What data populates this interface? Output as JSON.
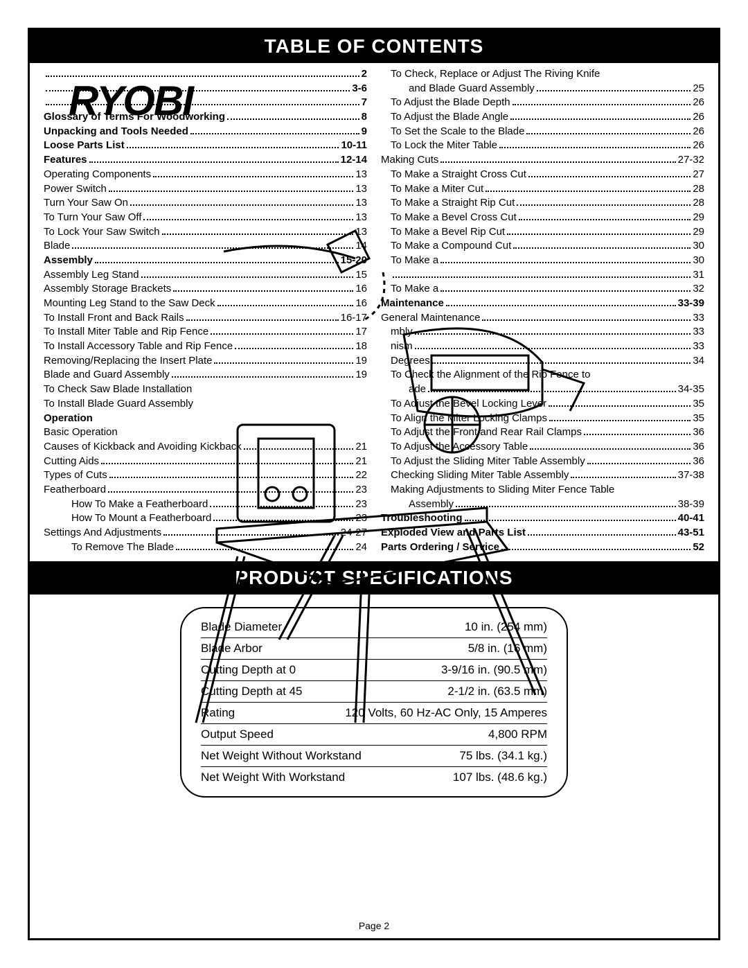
{
  "brand": "RYOBI",
  "headers": {
    "toc": "TABLE OF CONTENTS",
    "specs": "PRODUCT SPECIFICATIONS"
  },
  "page_label": "Page 2",
  "toc_left": [
    {
      "label": "",
      "page": "2",
      "bold": true,
      "indent": 0
    },
    {
      "label": "",
      "page": "3-6",
      "bold": true,
      "indent": 0
    },
    {
      "label": "",
      "page": "7",
      "bold": true,
      "indent": 0
    },
    {
      "label": "Glossary of Terms For Woodworking",
      "page": "8",
      "bold": true,
      "indent": 0
    },
    {
      "label": "Unpacking and Tools Needed",
      "page": "9",
      "bold": true,
      "indent": 0
    },
    {
      "label": "Loose Parts List",
      "page": "10-11",
      "bold": true,
      "indent": 0
    },
    {
      "label": "Features",
      "page": "12-14",
      "bold": true,
      "indent": 0
    },
    {
      "label": "Operating Components",
      "page": "13",
      "bold": false,
      "indent": 0
    },
    {
      "label": "Power Switch",
      "page": "13",
      "bold": false,
      "indent": 0
    },
    {
      "label": "Turn Your Saw On",
      "page": "13",
      "bold": false,
      "indent": 0
    },
    {
      "label": "To Turn Your Saw Off",
      "page": "13",
      "bold": false,
      "indent": 0
    },
    {
      "label": "To Lock Your Saw Switch",
      "page": "13",
      "bold": false,
      "indent": 0
    },
    {
      "label": "Blade",
      "page": "14",
      "bold": false,
      "indent": 0
    },
    {
      "label": "Assembly",
      "page": "15-20",
      "bold": true,
      "indent": 0
    },
    {
      "label": "Assembly Leg Stand",
      "page": "15",
      "bold": false,
      "indent": 0
    },
    {
      "label": "Assembly Storage Brackets",
      "page": "16",
      "bold": false,
      "indent": 0
    },
    {
      "label": "Mounting Leg Stand to the Saw Deck",
      "page": "16",
      "bold": false,
      "indent": 0
    },
    {
      "label": "To Install Front and Back Rails",
      "page": "16-17",
      "bold": false,
      "indent": 0
    },
    {
      "label": "To Install Miter Table and Rip Fence",
      "page": "17",
      "bold": false,
      "indent": 0
    },
    {
      "label": "To Install Accessory Table and Rip Fence",
      "page": "18",
      "bold": false,
      "indent": 0
    },
    {
      "label": "Removing/Replacing the Insert Plate",
      "page": "19",
      "bold": false,
      "indent": 0
    },
    {
      "label": "Blade and Guard Assembly",
      "page": "19",
      "bold": false,
      "indent": 0
    },
    {
      "label": "To Check Saw Blade Installation",
      "page": "",
      "bold": false,
      "indent": 0
    },
    {
      "label": "To Install Blade Guard Assembly",
      "page": "",
      "bold": false,
      "indent": 0
    },
    {
      "label": "Operation",
      "page": "",
      "bold": true,
      "indent": 0
    },
    {
      "label": "Basic Operation",
      "page": "",
      "bold": false,
      "indent": 0
    },
    {
      "label": "Causes of Kickback and Avoiding Kickback",
      "page": "21",
      "bold": false,
      "indent": 0
    },
    {
      "label": "Cutting Aids",
      "page": "21",
      "bold": false,
      "indent": 0
    },
    {
      "label": "Types of Cuts",
      "page": "22",
      "bold": false,
      "indent": 0
    },
    {
      "label": "Featherboard",
      "page": "23",
      "bold": false,
      "indent": 0
    },
    {
      "label": "How To Make a Featherboard",
      "page": "23",
      "bold": false,
      "indent": 2
    },
    {
      "label": "How To Mount a Featherboard",
      "page": "23",
      "bold": false,
      "indent": 2
    },
    {
      "label": "Settings And Adjustments",
      "page": "24-27",
      "bold": false,
      "indent": 0
    },
    {
      "label": "To Remove The Blade",
      "page": "24",
      "bold": false,
      "indent": 2
    }
  ],
  "toc_right": [
    {
      "label": "To Check, Replace or Adjust The Riving Knife",
      "page": "",
      "bold": false,
      "indent": 1
    },
    {
      "label": "and Blade Guard Assembly",
      "page": "25",
      "bold": false,
      "indent": 2
    },
    {
      "label": "To Adjust the Blade Depth",
      "page": "26",
      "bold": false,
      "indent": 1
    },
    {
      "label": "To Adjust the Blade Angle",
      "page": "26",
      "bold": false,
      "indent": 1
    },
    {
      "label": "To Set the Scale to the Blade",
      "page": "26",
      "bold": false,
      "indent": 1
    },
    {
      "label": "To Lock the Miter Table",
      "page": "26",
      "bold": false,
      "indent": 1
    },
    {
      "label": "Making Cuts",
      "page": "27-32",
      "bold": false,
      "indent": 0
    },
    {
      "label": "To Make a Straight Cross Cut",
      "page": "27",
      "bold": false,
      "indent": 1
    },
    {
      "label": "To Make a Miter Cut",
      "page": "28",
      "bold": false,
      "indent": 1
    },
    {
      "label": "To Make a Straight Rip Cut",
      "page": "28",
      "bold": false,
      "indent": 1
    },
    {
      "label": "To Make a Bevel Cross Cut",
      "page": "29",
      "bold": false,
      "indent": 1
    },
    {
      "label": "To Make a Bevel Rip Cut",
      "page": "29",
      "bold": false,
      "indent": 1
    },
    {
      "label": "To Make a Compound Cut",
      "page": "30",
      "bold": false,
      "indent": 1
    },
    {
      "label": "To Make a ",
      "page": "30",
      "bold": false,
      "indent": 1
    },
    {
      "label": "",
      "page": "31",
      "bold": false,
      "indent": 1
    },
    {
      "label": "To Make a",
      "page": "32",
      "bold": false,
      "indent": 1
    },
    {
      "label": "Maintenance",
      "page": "33-39",
      "bold": true,
      "indent": 0
    },
    {
      "label": "General Maintenance",
      "page": "33",
      "bold": false,
      "indent": 0
    },
    {
      "label": "",
      "page": "",
      "bold": false,
      "indent": 0
    },
    {
      "label": "mbly",
      "page": "33",
      "bold": false,
      "indent": 1
    },
    {
      "label": "nism",
      "page": "33",
      "bold": false,
      "indent": 1
    },
    {
      "label": "Degrees",
      "page": "34",
      "bold": false,
      "indent": 1
    },
    {
      "label": "To Check the Alignment of the Rip Fence to",
      "page": "",
      "bold": false,
      "indent": 1
    },
    {
      "label": "ade",
      "page": "34-35",
      "bold": false,
      "indent": 2
    },
    {
      "label": "To Adjust the Bevel Locking Lever",
      "page": "35",
      "bold": false,
      "indent": 1
    },
    {
      "label": "To Align the Miter Locking Clamps",
      "page": "35",
      "bold": false,
      "indent": 1
    },
    {
      "label": "To Adjust the Front and Rear Rail Clamps",
      "page": "36",
      "bold": false,
      "indent": 1
    },
    {
      "label": "To Adjust the Accessory Table",
      "page": "36",
      "bold": false,
      "indent": 1
    },
    {
      "label": "To Adjust the Sliding Miter Table Assembly",
      "page": "36",
      "bold": false,
      "indent": 1
    },
    {
      "label": "Checking Sliding Miter Table Assembly",
      "page": "37-38",
      "bold": false,
      "indent": 1
    },
    {
      "label": "Making Adjustments to Sliding Miter Fence Table",
      "page": "",
      "bold": false,
      "indent": 1
    },
    {
      "label": "Assembly",
      "page": "38-39",
      "bold": false,
      "indent": 2
    },
    {
      "label": "Troubleshooting",
      "page": "40-41",
      "bold": true,
      "indent": 0
    },
    {
      "label": "Exploded View and Parts List",
      "page": "43-51",
      "bold": true,
      "indent": 0
    },
    {
      "label": "Parts Ordering / Service",
      "page": "52",
      "bold": true,
      "indent": 0
    }
  ],
  "specs": [
    {
      "label": "Blade Diameter",
      "value": "10 in. (254 mm)"
    },
    {
      "label": "Blade Arbor",
      "value": "5/8 in. (16 mm)"
    },
    {
      "label": "Cutting Depth at 0",
      "value": "3-9/16 in. (90.5 mm)"
    },
    {
      "label": "Cutting Depth at 45",
      "value": "2-1/2 in. (63.5 mm)"
    },
    {
      "label": "Rating",
      "value": "120 Volts, 60 Hz-AC Only, 15 Amperes"
    },
    {
      "label": "Output Speed",
      "value": "4,800 RPM"
    },
    {
      "label": "Net Weight Without Workstand",
      "value": "75 lbs. (34.1 kg.)"
    },
    {
      "label": "Net Weight With Workstand",
      "value": "107 lbs. (48.6 kg.)"
    }
  ],
  "colors": {
    "text": "#000000",
    "bg": "#ffffff",
    "header_bg": "#000000",
    "header_fg": "#ffffff"
  }
}
